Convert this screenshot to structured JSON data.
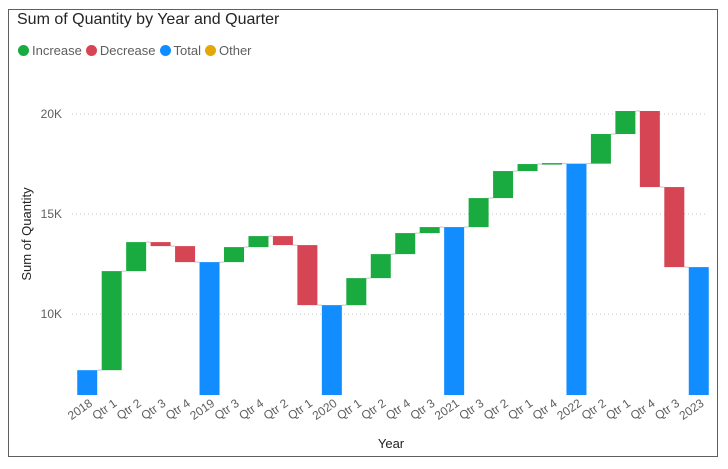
{
  "chart_data": {
    "type": "waterfall",
    "title": "Sum of Quantity by Year and Quarter",
    "xlabel": "Year",
    "ylabel": "Sum of Quantity",
    "ylim": [
      5960,
      21200
    ],
    "yticks": [
      10000,
      15000,
      20000
    ],
    "ytick_labels": [
      "10K",
      "15K",
      "20K"
    ],
    "grid": true,
    "legend_position": "top-left",
    "legend": [
      {
        "name": "Increase",
        "color": "#1aab40"
      },
      {
        "name": "Decrease",
        "color": "#d64554"
      },
      {
        "name": "Total",
        "color": "#118dff"
      },
      {
        "name": "Other",
        "color": "#e3a707"
      }
    ],
    "categories": [
      "2018",
      "Qtr 1",
      "Qtr 2",
      "Qtr 3",
      "Qtr 4",
      "2019",
      "Qtr 3",
      "Qtr 4",
      "Qtr 2",
      "Qtr 1",
      "2020",
      "Qtr 1",
      "Qtr 2",
      "Qtr 4",
      "Qtr 3",
      "2021",
      "Qtr 3",
      "Qtr 2",
      "Qtr 1",
      "Qtr 4",
      "2022",
      "Qtr 2",
      "Qtr 1",
      "Qtr 4",
      "Qtr 3",
      "2023"
    ],
    "bars": [
      {
        "kind": "total",
        "start": 5960,
        "end": 7200
      },
      {
        "kind": "increase",
        "start": 7200,
        "end": 12150
      },
      {
        "kind": "increase",
        "start": 12150,
        "end": 13600
      },
      {
        "kind": "decrease",
        "start": 13600,
        "end": 13400
      },
      {
        "kind": "decrease",
        "start": 13400,
        "end": 12600
      },
      {
        "kind": "total",
        "start": 5960,
        "end": 12600
      },
      {
        "kind": "increase",
        "start": 12600,
        "end": 13350
      },
      {
        "kind": "increase",
        "start": 13350,
        "end": 13900
      },
      {
        "kind": "decrease",
        "start": 13900,
        "end": 13450
      },
      {
        "kind": "decrease",
        "start": 13450,
        "end": 10450
      },
      {
        "kind": "total",
        "start": 5960,
        "end": 10450
      },
      {
        "kind": "increase",
        "start": 10450,
        "end": 11800
      },
      {
        "kind": "increase",
        "start": 11800,
        "end": 13000
      },
      {
        "kind": "increase",
        "start": 13000,
        "end": 14050
      },
      {
        "kind": "increase",
        "start": 14050,
        "end": 14350
      },
      {
        "kind": "total",
        "start": 5960,
        "end": 14350
      },
      {
        "kind": "increase",
        "start": 14350,
        "end": 15800
      },
      {
        "kind": "increase",
        "start": 15800,
        "end": 17150
      },
      {
        "kind": "increase",
        "start": 17150,
        "end": 17500
      },
      {
        "kind": "increase",
        "start": 17500,
        "end": 17520
      },
      {
        "kind": "total",
        "start": 5960,
        "end": 17520
      },
      {
        "kind": "increase",
        "start": 17520,
        "end": 19000
      },
      {
        "kind": "increase",
        "start": 19000,
        "end": 20150
      },
      {
        "kind": "decrease",
        "start": 20150,
        "end": 16350
      },
      {
        "kind": "decrease",
        "start": 16350,
        "end": 12350
      },
      {
        "kind": "total",
        "start": 5960,
        "end": 12350
      }
    ]
  }
}
